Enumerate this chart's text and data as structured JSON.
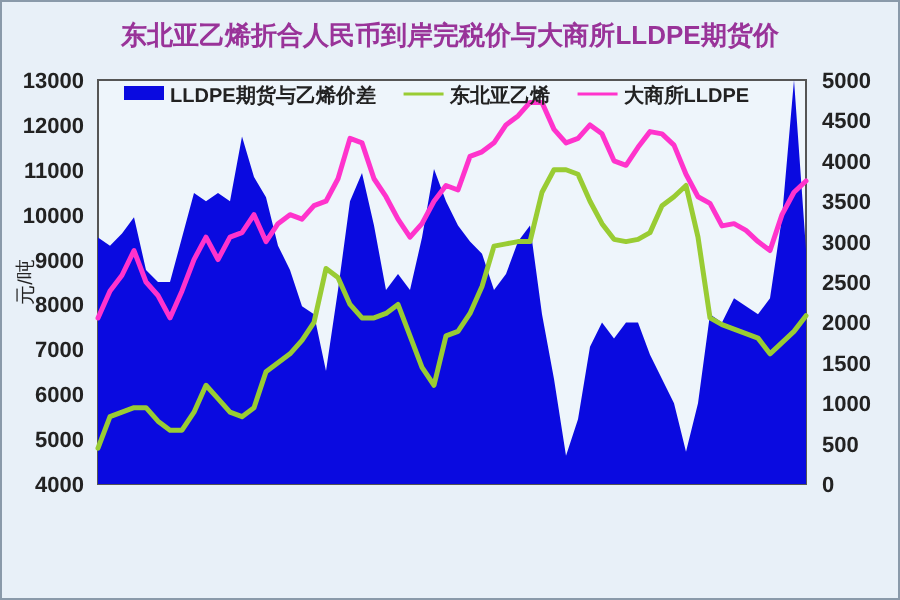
{
  "chart_data": {
    "type": "line",
    "title": "东北亚乙烯折合人民币到岸完税价与大商所LLDPE期货价",
    "ylabel": "元/吨",
    "categories": [
      null,
      null,
      null,
      null,
      null,
      null,
      null,
      null,
      null,
      null,
      null,
      null,
      null,
      null,
      null,
      null,
      null,
      null,
      null,
      null,
      null,
      null,
      null,
      null,
      null,
      null,
      null,
      null,
      null,
      null,
      null,
      null,
      null,
      null,
      null,
      null,
      null,
      null,
      null,
      null,
      null,
      null,
      null,
      null,
      null,
      null,
      null,
      null,
      null,
      null,
      null,
      null,
      null,
      null,
      null,
      null,
      null,
      null,
      null,
      null
    ],
    "ylim": [
      4000,
      13000
    ],
    "yticks": [
      4000,
      5000,
      6000,
      7000,
      8000,
      9000,
      10000,
      11000,
      12000,
      13000
    ],
    "y2lim": [
      0,
      5000
    ],
    "y2ticks": [
      0,
      500,
      1000,
      1500,
      2000,
      2500,
      3000,
      3500,
      4000,
      4500,
      5000
    ],
    "tick_labels": "y",
    "legend": "top",
    "grid": false,
    "series": [
      {
        "name": "LLDPE期货与乙烯价差",
        "type": "area",
        "axis": "y2",
        "color": "#0a0ae0",
        "values": [
          3050,
          2950,
          3100,
          3300,
          2650,
          2500,
          2500,
          3050,
          3600,
          3500,
          3600,
          3500,
          4300,
          3800,
          3550,
          2950,
          2650,
          2200,
          2100,
          1400,
          2400,
          3500,
          3850,
          3200,
          2400,
          2600,
          2400,
          3050,
          3900,
          3500,
          3200,
          3000,
          2850,
          2400,
          2600,
          3000,
          3200,
          2100,
          1300,
          350,
          800,
          1700,
          2000,
          1800,
          2000,
          2000,
          1600,
          1300,
          1000,
          400,
          1000,
          2100,
          2000,
          2300,
          2200,
          2100,
          2300,
          3300,
          5000,
          2900
        ]
      },
      {
        "name": "东北亚乙烯",
        "color": "#99cc33",
        "values": [
          4800,
          5500,
          5600,
          5700,
          5700,
          5400,
          5200,
          5200,
          5600,
          6200,
          5900,
          5600,
          5500,
          5700,
          6500,
          6700,
          6900,
          7200,
          7600,
          8800,
          8600,
          8000,
          7700,
          7700,
          7800,
          8000,
          7300,
          6600,
          6200,
          7300,
          7400,
          7800,
          8400,
          9300,
          9350,
          9400,
          9400,
          10500,
          11000,
          11000,
          10900,
          10300,
          9800,
          9450,
          9400,
          9450,
          9600,
          10200,
          10400,
          10650,
          9500,
          7700,
          7550,
          7450,
          7350,
          7250,
          6900,
          7150,
          7400,
          7750
        ]
      },
      {
        "name": "大商所LLDPE",
        "color": "#ff33cc",
        "values": [
          7700,
          8300,
          8650,
          9200,
          8500,
          8200,
          7700,
          8300,
          9000,
          9500,
          9000,
          9500,
          9600,
          10000,
          9400,
          9800,
          10000,
          9900,
          10200,
          10300,
          10800,
          11700,
          11600,
          10800,
          10400,
          9900,
          9500,
          9800,
          10300,
          10650,
          10550,
          11300,
          11400,
          11600,
          12000,
          12200,
          12500,
          12500,
          11900,
          11600,
          11700,
          12000,
          11800,
          11200,
          11100,
          11500,
          11850,
          11800,
          11550,
          10900,
          10400,
          10250,
          9750,
          9800,
          9650,
          9400,
          9200,
          10000,
          10500,
          10750
        ]
      }
    ]
  }
}
